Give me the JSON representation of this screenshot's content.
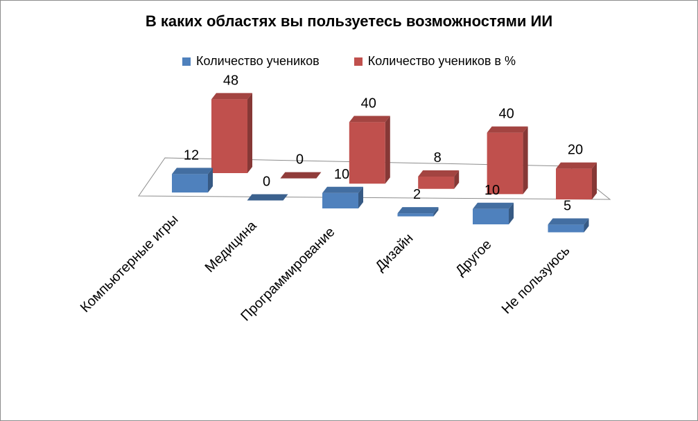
{
  "chart_data": {
    "type": "bar",
    "title": "В каких областях вы пользуетесь возможностями ИИ",
    "categories": [
      "Компьютерные игры",
      "Медицина",
      "Программирование",
      "Дизайн",
      "Другое",
      "Не пользуюсь"
    ],
    "series": [
      {
        "name": "Количество учеников",
        "values": [
          12,
          0,
          10,
          2,
          10,
          5
        ],
        "color": "#4F81BD"
      },
      {
        "name": "Количество учеников в %",
        "values": [
          48,
          0,
          40,
          8,
          40,
          20
        ],
        "color": "#C0504D"
      }
    ],
    "grid": false,
    "legend_position": "top",
    "three_d": true
  }
}
